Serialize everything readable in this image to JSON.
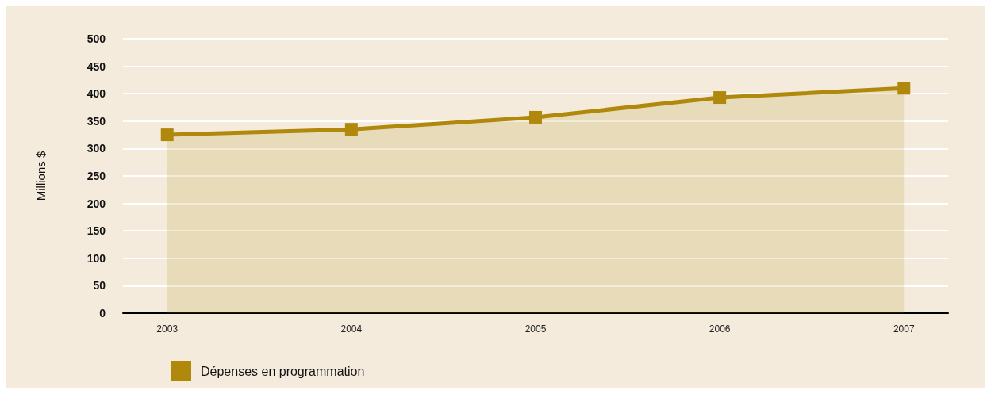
{
  "chart_data": {
    "type": "area",
    "ylabel": "Millions $",
    "categories": [
      "2003",
      "2004",
      "2005",
      "2006",
      "2007"
    ],
    "series": [
      {
        "name": "Dépenses en programmation",
        "color": "#b0880c",
        "values": [
          325,
          335,
          357,
          393,
          410
        ]
      }
    ],
    "ylim": [
      0,
      500
    ],
    "yticks": [
      0,
      50,
      100,
      150,
      200,
      250,
      300,
      350,
      400,
      450,
      500
    ],
    "grid": "y",
    "legend": "bottom",
    "marker": "square",
    "line_style": "solid"
  }
}
